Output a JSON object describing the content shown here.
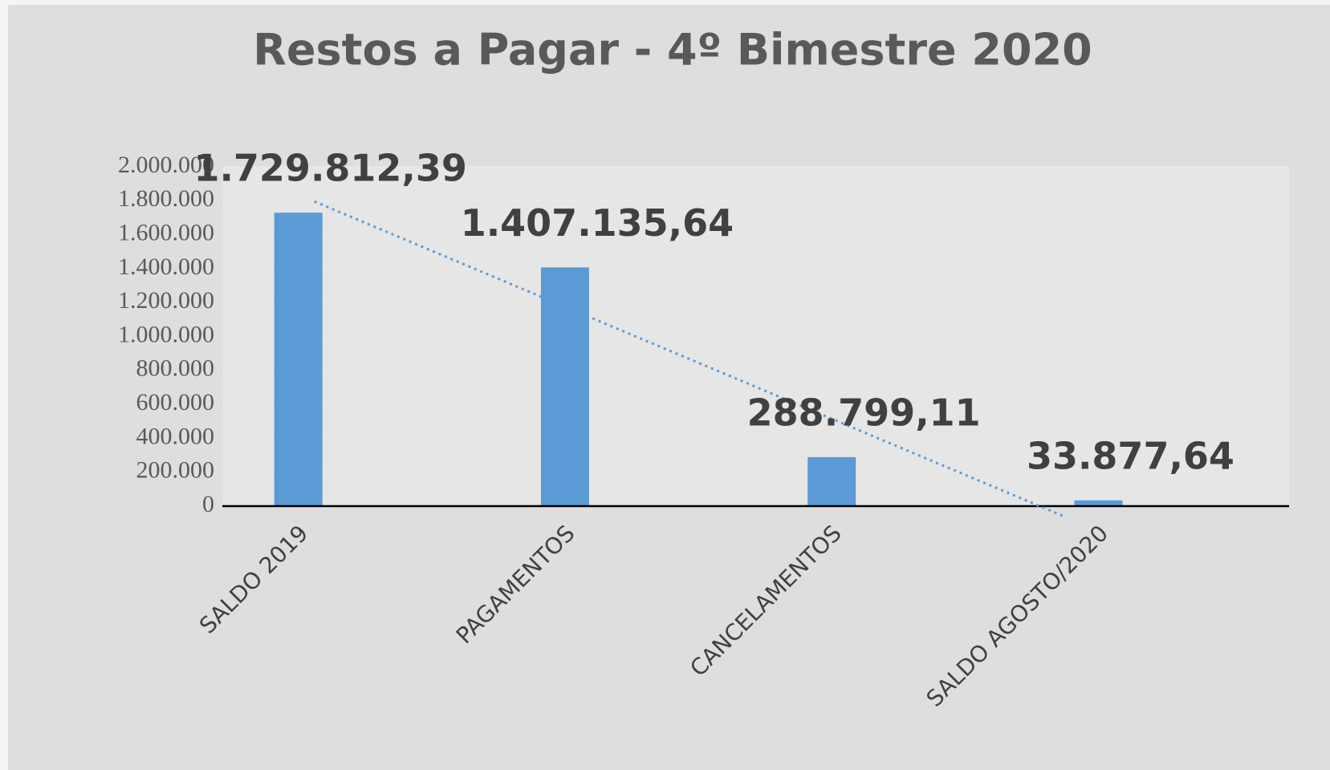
{
  "chart_data": {
    "type": "bar",
    "title": "Restos a Pagar - 4º Bimestre 2020",
    "categories": [
      "SALDO 2019",
      "PAGAMENTOS",
      "CANCELAMENTOS",
      "SALDO AGOSTO/2020"
    ],
    "values": [
      1729812.39,
      1407135.64,
      288799.11,
      33877.64
    ],
    "value_labels": [
      "1.729.812,39",
      "1.407.135,64",
      "288.799,11",
      "33.877,64"
    ],
    "color": "#5b9bd5",
    "ylim": [
      0,
      2000000
    ],
    "yticks": [
      0,
      {
        "value": 200000,
        "label": "200.000"
      },
      {
        "value": 400000,
        "label": "400.000"
      },
      {
        "value": 600000,
        "label": "600.000"
      },
      {
        "value": 800000,
        "label": "800.000"
      },
      {
        "value": 1000000,
        "label": "1.000.000"
      },
      {
        "value": 1200000,
        "label": "1.200.000"
      },
      {
        "value": 1400000,
        "label": "1.400.000"
      },
      {
        "value": 1600000,
        "label": "1.600.000"
      },
      {
        "value": 1800000,
        "label": "1.800.000"
      },
      {
        "value": 2000000,
        "label": "2.000.000"
      }
    ],
    "trendline": "linear",
    "trendline_color": "#5b9bd5"
  }
}
